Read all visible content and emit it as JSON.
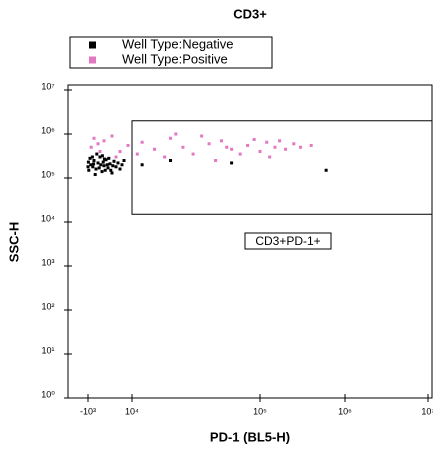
{
  "chart_data": {
    "type": "scatter",
    "title": "CD3+",
    "xlabel": "PD-1 (BL5-H)",
    "ylabel": "SSC-H",
    "xscale": "biexponential",
    "yscale": "log",
    "xlim": [
      -5000,
      12000000
    ],
    "ylim": [
      1,
      13000000
    ],
    "xticks": [
      {
        "value": -1000,
        "label": "-10³"
      },
      {
        "value": 10000,
        "label": "10⁴"
      },
      {
        "value": 100000,
        "label": "10⁵"
      },
      {
        "value": 1000000,
        "label": "10⁶"
      },
      {
        "value": 10000000,
        "label": "10⁷"
      }
    ],
    "yticks": [
      {
        "value": 1,
        "label": "10⁰"
      },
      {
        "value": 10,
        "label": "10¹"
      },
      {
        "value": 100,
        "label": "10²"
      },
      {
        "value": 1000,
        "label": "10³"
      },
      {
        "value": 10000,
        "label": "10⁴"
      },
      {
        "value": 100000,
        "label": "10⁵"
      },
      {
        "value": 1000000,
        "label": "10⁶"
      },
      {
        "value": 10000000,
        "label": "10⁷"
      }
    ],
    "legend": "top",
    "gate": {
      "label": "CD3+PD-1+",
      "xmin": 10000,
      "ymin": 15000,
      "ymax": 2000000
    },
    "series": [
      {
        "name": "Well Type:Negative",
        "color": "#000000",
        "x": [
          -800,
          -300,
          200,
          500,
          1000,
          1500,
          2000,
          2500,
          3000,
          3500,
          4000,
          4500,
          5000,
          5500,
          6000,
          -500,
          800,
          1200,
          2200,
          2800,
          3300,
          4200,
          5200,
          6500,
          7000,
          -900,
          100,
          1800,
          2600,
          3800,
          8000,
          12000,
          20000,
          60000,
          600000,
          -1000,
          400,
          3100,
          4700,
          7500
        ],
        "values": [
          150000,
          200000,
          180000,
          250000,
          160000,
          220000,
          300000,
          140000,
          190000,
          260000,
          170000,
          210000,
          130000,
          240000,
          180000,
          280000,
          120000,
          350000,
          200000,
          230000,
          150000,
          280000,
          190000,
          220000,
          160000,
          230000,
          300000,
          170000,
          320000,
          200000,
          250000,
          200000,
          250000,
          220000,
          150000,
          180000,
          210000,
          270000,
          150000,
          200000
        ]
      },
      {
        "name": "Well Type:Positive",
        "color": "#e377c2",
        "x": [
          -200,
          500,
          1500,
          3000,
          5000,
          7000,
          9000,
          12000,
          15000,
          20000,
          25000,
          30000,
          40000,
          50000,
          60000,
          80000,
          100000,
          120000,
          150000,
          200000,
          250000,
          300000,
          400000,
          18000,
          35000,
          70000,
          90000,
          2000,
          6000,
          45000,
          130000,
          22000,
          11000,
          55000,
          170000
        ],
        "values": [
          500000,
          800000,
          600000,
          700000,
          900000,
          400000,
          550000,
          650000,
          450000,
          800000,
          500000,
          350000,
          600000,
          700000,
          450000,
          550000,
          400000,
          650000,
          500000,
          450000,
          600000,
          500000,
          550000,
          300000,
          900000,
          350000,
          750000,
          400000,
          300000,
          250000,
          300000,
          1000000,
          350000,
          500000,
          700000
        ]
      }
    ]
  }
}
